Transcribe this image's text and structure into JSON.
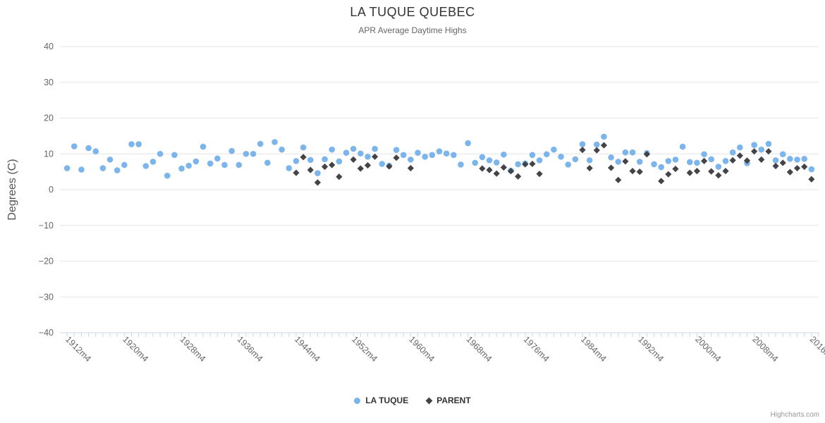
{
  "title": "LA TUQUE QUEBEC",
  "subtitle": "APR Average Daytime Highs",
  "credit": "Highcharts.com",
  "colors": {
    "la_tuque": "#7cb5ec",
    "parent": "#434348",
    "grid_line": "#e6e6e6",
    "axis_line": "#ccd6eb",
    "tick_label": "#666666",
    "title_text": "#333333",
    "subtitle_text": "#666666",
    "y_axis_title_text": "#555555",
    "legend_text": "#333333",
    "credit_text": "#999999"
  },
  "chart_data": {
    "type": "scatter",
    "title": "LA TUQUE QUEBEC",
    "subtitle": "APR Average Daytime Highs",
    "xlabel": "",
    "ylabel": "Degrees (C)",
    "ylim": [
      -40,
      40
    ],
    "yticks": [
      40,
      30,
      20,
      10,
      0,
      -10,
      -20,
      -30,
      -40
    ],
    "xlim": [
      1911,
      2017
    ],
    "x_unit_suffix": "m4",
    "xtick_label_years": [
      1912,
      1920,
      1928,
      1936,
      1944,
      1952,
      1960,
      1968,
      1976,
      1984,
      1992,
      2000,
      2008,
      2016
    ],
    "xtick_labels": [
      "1912m4",
      "1920m4",
      "1928m4",
      "1936m4",
      "1944m4",
      "1952m4",
      "1960m4",
      "1968m4",
      "1976m4",
      "1984m4",
      "1992m4",
      "2000m4",
      "2008m4",
      "2016m4"
    ],
    "minor_tick_every_years": 1,
    "grid": true,
    "legend_position": "bottom",
    "series": [
      {
        "name": "LA TUQUE",
        "marker": "circle",
        "color": "#7cb5ec",
        "points": [
          [
            1912,
            6.0
          ],
          [
            1913,
            12.1
          ],
          [
            1914,
            5.6
          ],
          [
            1915,
            11.6
          ],
          [
            1916,
            10.7
          ],
          [
            1917,
            6.0
          ],
          [
            1918,
            8.4
          ],
          [
            1919,
            5.4
          ],
          [
            1920,
            6.9
          ],
          [
            1921,
            12.7
          ],
          [
            1922,
            12.7
          ],
          [
            1923,
            6.6
          ],
          [
            1924,
            7.8
          ],
          [
            1925,
            10.0
          ],
          [
            1926,
            3.9
          ],
          [
            1927,
            9.7
          ],
          [
            1928,
            5.9
          ],
          [
            1929,
            6.7
          ],
          [
            1930,
            7.9
          ],
          [
            1931,
            12.0
          ],
          [
            1932,
            7.3
          ],
          [
            1933,
            8.7
          ],
          [
            1934,
            6.9
          ],
          [
            1935,
            10.8
          ],
          [
            1936,
            6.9
          ],
          [
            1937,
            10.0
          ],
          [
            1938,
            10.0
          ],
          [
            1939,
            12.8
          ],
          [
            1940,
            7.5
          ],
          [
            1941,
            13.3
          ],
          [
            1942,
            11.2
          ],
          [
            1943,
            6.0
          ],
          [
            1944,
            8.0
          ],
          [
            1945,
            11.8
          ],
          [
            1946,
            8.3
          ],
          [
            1947,
            4.6
          ],
          [
            1948,
            8.5
          ],
          [
            1949,
            11.2
          ],
          [
            1950,
            7.9
          ],
          [
            1951,
            10.3
          ],
          [
            1952,
            11.4
          ],
          [
            1953,
            10.1
          ],
          [
            1954,
            9.2
          ],
          [
            1955,
            11.4
          ],
          [
            1956,
            7.2
          ],
          [
            1957,
            6.7
          ],
          [
            1958,
            11.1
          ],
          [
            1959,
            9.7
          ],
          [
            1960,
            8.4
          ],
          [
            1961,
            10.3
          ],
          [
            1962,
            9.2
          ],
          [
            1963,
            9.7
          ],
          [
            1964,
            10.7
          ],
          [
            1965,
            10.1
          ],
          [
            1966,
            9.7
          ],
          [
            1967,
            7.0
          ],
          [
            1968,
            13.0
          ],
          [
            1969,
            7.5
          ],
          [
            1970,
            9.1
          ],
          [
            1971,
            8.2
          ],
          [
            1972,
            7.6
          ],
          [
            1973,
            9.8
          ],
          [
            1974,
            5.3
          ],
          [
            1975,
            7.1
          ],
          [
            1976,
            7.3
          ],
          [
            1977,
            9.7
          ],
          [
            1978,
            8.2
          ],
          [
            1979,
            9.9
          ],
          [
            1980,
            11.2
          ],
          [
            1981,
            9.2
          ],
          [
            1982,
            7.0
          ],
          [
            1983,
            8.5
          ],
          [
            1984,
            12.7
          ],
          [
            1985,
            8.2
          ],
          [
            1986,
            12.6
          ],
          [
            1987,
            14.8
          ],
          [
            1988,
            9.0
          ],
          [
            1989,
            7.8
          ],
          [
            1990,
            10.4
          ],
          [
            1991,
            10.4
          ],
          [
            1992,
            7.8
          ],
          [
            1993,
            10.2
          ],
          [
            1994,
            7.1
          ],
          [
            1995,
            6.3
          ],
          [
            1996,
            8.0
          ],
          [
            1997,
            8.4
          ],
          [
            1998,
            12.0
          ],
          [
            1999,
            7.7
          ],
          [
            2000,
            7.5
          ],
          [
            2001,
            9.9
          ],
          [
            2002,
            8.5
          ],
          [
            2003,
            6.4
          ],
          [
            2004,
            8.0
          ],
          [
            2005,
            10.4
          ],
          [
            2006,
            11.8
          ],
          [
            2007,
            7.4
          ],
          [
            2008,
            12.5
          ],
          [
            2009,
            11.2
          ],
          [
            2010,
            12.8
          ],
          [
            2011,
            8.2
          ],
          [
            2012,
            9.9
          ],
          [
            2013,
            8.6
          ],
          [
            2014,
            8.4
          ],
          [
            2015,
            8.6
          ],
          [
            2016,
            5.7
          ]
        ]
      },
      {
        "name": "PARENT",
        "marker": "diamond",
        "color": "#434348",
        "points": [
          [
            1944,
            4.7
          ],
          [
            1945,
            9.1
          ],
          [
            1946,
            5.5
          ],
          [
            1947,
            2.0
          ],
          [
            1948,
            6.4
          ],
          [
            1949,
            6.9
          ],
          [
            1950,
            3.6
          ],
          [
            1952,
            8.4
          ],
          [
            1953,
            5.9
          ],
          [
            1954,
            6.8
          ],
          [
            1955,
            9.2
          ],
          [
            1957,
            6.5
          ],
          [
            1958,
            8.9
          ],
          [
            1960,
            6.0
          ],
          [
            1970,
            5.9
          ],
          [
            1971,
            5.5
          ],
          [
            1972,
            4.5
          ],
          [
            1973,
            6.2
          ],
          [
            1974,
            5.2
          ],
          [
            1975,
            3.7
          ],
          [
            1976,
            7.1
          ],
          [
            1977,
            7.2
          ],
          [
            1978,
            4.4
          ],
          [
            1984,
            11.1
          ],
          [
            1985,
            6.0
          ],
          [
            1986,
            11.0
          ],
          [
            1987,
            12.4
          ],
          [
            1988,
            6.1
          ],
          [
            1989,
            2.7
          ],
          [
            1990,
            7.9
          ],
          [
            1991,
            5.2
          ],
          [
            1992,
            5.0
          ],
          [
            1993,
            9.9
          ],
          [
            1995,
            2.4
          ],
          [
            1996,
            4.3
          ],
          [
            1997,
            5.8
          ],
          [
            1999,
            4.7
          ],
          [
            2000,
            5.2
          ],
          [
            2001,
            8.0
          ],
          [
            2002,
            5.1
          ],
          [
            2003,
            4.0
          ],
          [
            2004,
            5.2
          ],
          [
            2005,
            8.2
          ],
          [
            2006,
            9.5
          ],
          [
            2007,
            8.1
          ],
          [
            2008,
            10.7
          ],
          [
            2009,
            8.4
          ],
          [
            2010,
            10.7
          ],
          [
            2011,
            6.6
          ],
          [
            2012,
            7.5
          ],
          [
            2013,
            4.9
          ],
          [
            2014,
            6.0
          ],
          [
            2015,
            6.4
          ],
          [
            2016,
            2.9
          ]
        ]
      }
    ]
  }
}
